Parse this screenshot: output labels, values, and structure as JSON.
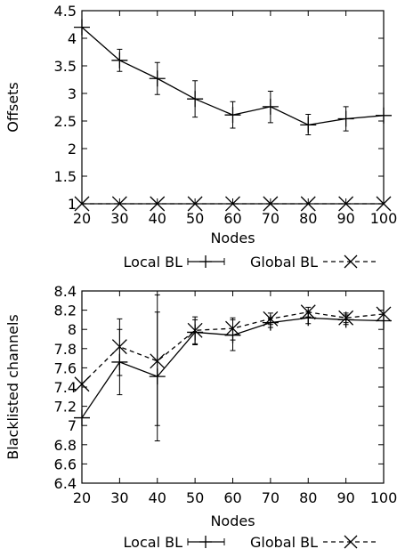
{
  "chart_data": [
    {
      "type": "line",
      "title": "",
      "xlabel": "Nodes",
      "ylabel": "Offsets",
      "x": [
        20,
        30,
        40,
        50,
        60,
        70,
        80,
        90,
        100
      ],
      "xlim": [
        20,
        100
      ],
      "ylim": [
        1,
        4.5
      ],
      "xticks": [
        "20",
        "30",
        "40",
        "50",
        "60",
        "70",
        "80",
        "90",
        "100"
      ],
      "yticks": [
        "1",
        "1.5",
        "2",
        "2.5",
        "3",
        "3.5",
        "4",
        "4.5"
      ],
      "grid": false,
      "legend_position": "bottom",
      "series": [
        {
          "name": "Local BL",
          "style": "solid",
          "marker": "plus",
          "values": [
            4.2,
            3.6,
            3.27,
            2.9,
            2.61,
            2.76,
            2.43,
            2.54,
            2.6
          ],
          "error_low": [
            4.2,
            3.4,
            2.98,
            2.57,
            2.37,
            2.47,
            2.25,
            2.32,
            2.6
          ],
          "error_high": [
            4.2,
            3.8,
            3.56,
            3.23,
            2.85,
            3.04,
            2.62,
            2.76,
            2.6
          ]
        },
        {
          "name": "Global BL",
          "style": "dashed",
          "marker": "cross",
          "values": [
            1,
            1,
            1,
            1,
            1,
            1,
            1,
            1,
            1
          ]
        }
      ]
    },
    {
      "type": "line",
      "title": "",
      "xlabel": "Nodes",
      "ylabel": "Blacklisted channels",
      "x": [
        20,
        30,
        40,
        50,
        60,
        70,
        80,
        90,
        100
      ],
      "xlim": [
        20,
        100
      ],
      "ylim": [
        6.4,
        8.4
      ],
      "xticks": [
        "20",
        "30",
        "40",
        "50",
        "60",
        "70",
        "80",
        "90",
        "100"
      ],
      "yticks": [
        "6.4",
        "6.6",
        "6.8",
        "7",
        "7.2",
        "7.4",
        "7.6",
        "7.8",
        "8",
        "8.2",
        "8.4"
      ],
      "grid": false,
      "legend_position": "bottom",
      "series": [
        {
          "name": "Local BL",
          "style": "solid",
          "marker": "plus",
          "values": [
            7.08,
            7.66,
            7.51,
            7.97,
            7.94,
            8.07,
            8.12,
            8.1,
            8.09
          ],
          "error_low": [
            7.08,
            7.32,
            6.84,
            7.84,
            7.78,
            8.02,
            8.06,
            8.05,
            8.09
          ],
          "error_high": [
            7.08,
            8.0,
            8.18,
            8.1,
            8.1,
            8.12,
            8.18,
            8.15,
            8.09
          ]
        },
        {
          "name": "Global BL",
          "style": "dashed",
          "marker": "cross",
          "values": [
            7.43,
            7.82,
            7.67,
            7.99,
            8.01,
            8.11,
            8.18,
            8.12,
            8.16
          ],
          "error_low": [
            7.43,
            7.52,
            7.0,
            7.85,
            7.89,
            8.05,
            8.13,
            8.07,
            8.16
          ],
          "error_high": [
            7.43,
            8.11,
            8.36,
            8.13,
            8.12,
            8.17,
            8.23,
            8.17,
            8.16
          ]
        }
      ]
    }
  ]
}
